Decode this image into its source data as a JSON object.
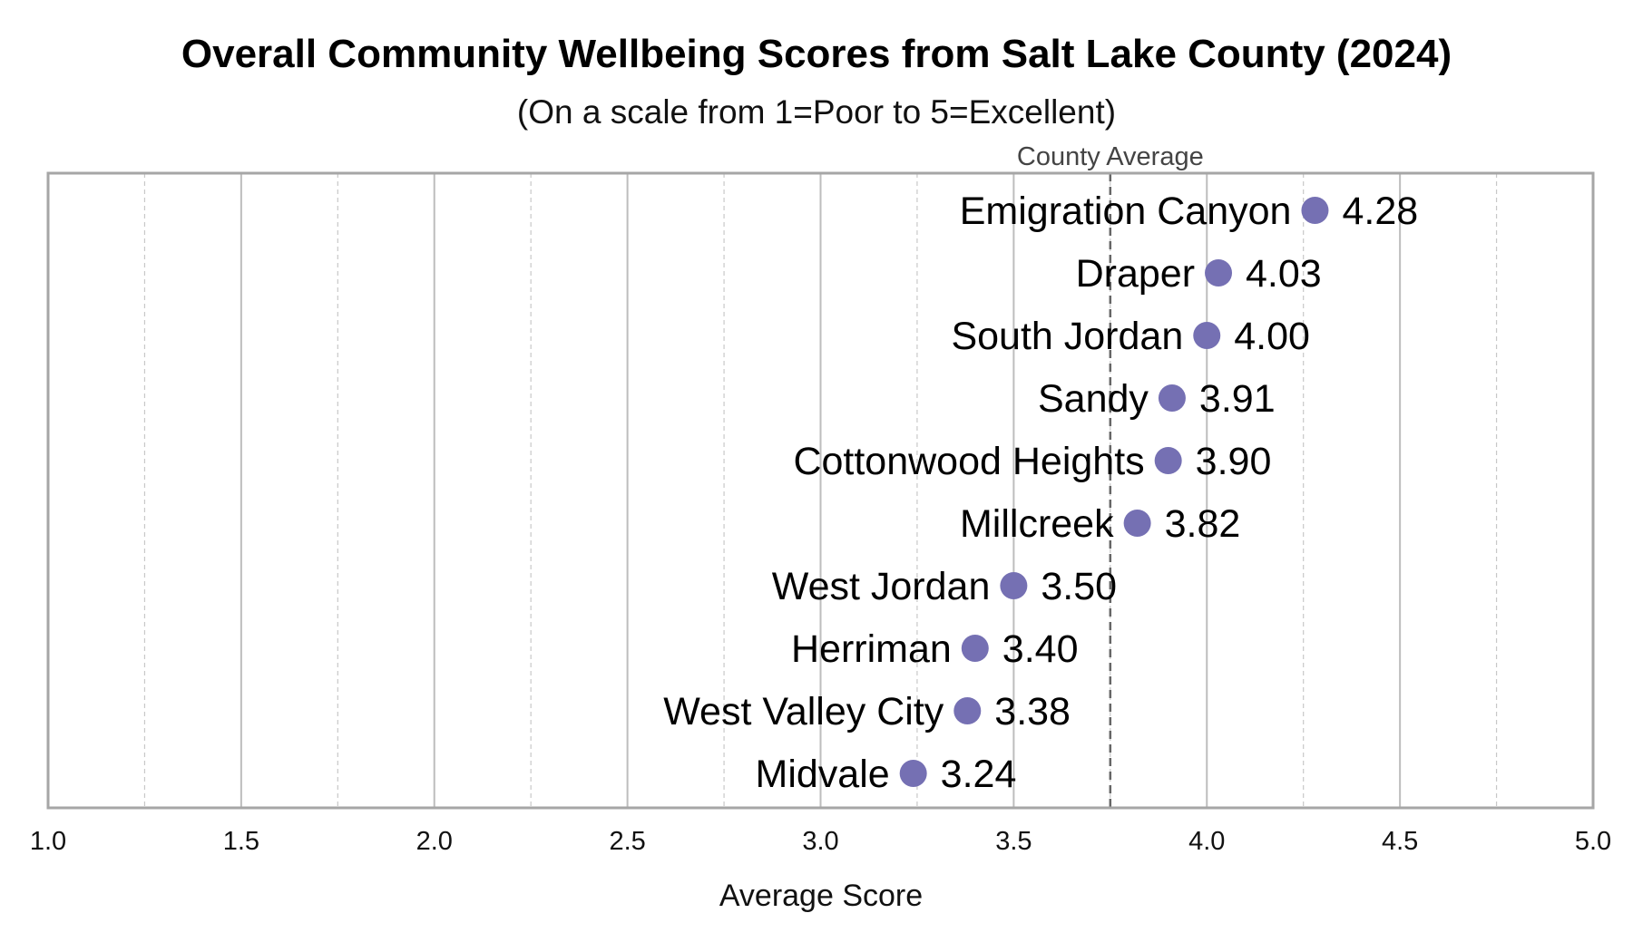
{
  "chart_data": {
    "type": "scatter",
    "title": "Overall Community Wellbeing Scores from Salt Lake County (2024)",
    "subtitle": "(On a scale from 1=Poor to 5=Excellent)",
    "xlabel": "Average Score",
    "ylabel": "",
    "xlim": [
      1.0,
      5.0
    ],
    "xticks": [
      "1.0",
      "1.5",
      "2.0",
      "2.5",
      "3.0",
      "3.5",
      "4.0",
      "4.5",
      "5.0"
    ],
    "minor_grid": [
      1.25,
      1.75,
      2.25,
      2.75,
      3.25,
      3.75,
      4.25,
      4.75
    ],
    "grid": true,
    "reference_line": {
      "label": "County Average",
      "value": 3.75
    },
    "categories": [
      "Emigration Canyon",
      "Draper",
      "South Jordan",
      "Sandy",
      "Cottonwood Heights",
      "Millcreek",
      "West Jordan",
      "Herriman",
      "West Valley City",
      "Midvale"
    ],
    "values": [
      4.28,
      4.03,
      4.0,
      3.91,
      3.9,
      3.82,
      3.5,
      3.4,
      3.38,
      3.24
    ],
    "value_labels": [
      "4.28",
      "4.03",
      "4.00",
      "3.91",
      "3.90",
      "3.82",
      "3.50",
      "3.40",
      "3.38",
      "3.24"
    ],
    "colors": {
      "point": "#7570b3",
      "frame": "#a6a6a6",
      "grid": "#bdbdbd",
      "reference": "#666666"
    }
  }
}
